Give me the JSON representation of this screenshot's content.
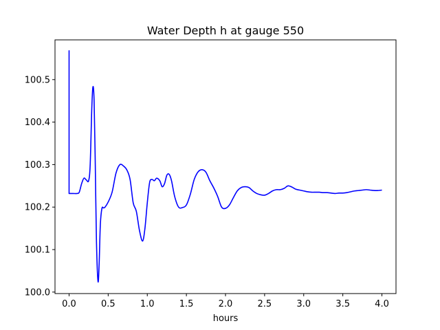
{
  "chart_data": {
    "type": "line",
    "title": "Water Depth h at gauge 550",
    "xlabel": "hours",
    "ylabel": "",
    "xlim": [
      -0.18,
      4.18
    ],
    "ylim": [
      99.9965,
      100.5935
    ],
    "grid": false,
    "x_ticks": [
      {
        "value": 0.0,
        "label": "0.0"
      },
      {
        "value": 0.5,
        "label": "0.5"
      },
      {
        "value": 1.0,
        "label": "1.0"
      },
      {
        "value": 1.5,
        "label": "1.5"
      },
      {
        "value": 2.0,
        "label": "2.0"
      },
      {
        "value": 2.5,
        "label": "2.5"
      },
      {
        "value": 3.0,
        "label": "3.0"
      },
      {
        "value": 3.5,
        "label": "3.5"
      },
      {
        "value": 4.0,
        "label": "4.0"
      }
    ],
    "y_ticks": [
      {
        "value": 100.0,
        "label": "100.0"
      },
      {
        "value": 100.1,
        "label": "100.1"
      },
      {
        "value": 100.2,
        "label": "100.2"
      },
      {
        "value": 100.3,
        "label": "100.3"
      },
      {
        "value": 100.4,
        "label": "100.4"
      },
      {
        "value": 100.5,
        "label": "100.5"
      }
    ],
    "series": [
      {
        "color": "#0000ff",
        "x": [
          0.0,
          0.0,
          0.0,
          0.05,
          0.1,
          0.13,
          0.16,
          0.19,
          0.22,
          0.25,
          0.27,
          0.29,
          0.305,
          0.32,
          0.335,
          0.35,
          0.37,
          0.385,
          0.4,
          0.42,
          0.44,
          0.46,
          0.5,
          0.55,
          0.6,
          0.65,
          0.7,
          0.74,
          0.78,
          0.82,
          0.86,
          0.9,
          0.94,
          0.97,
          1.0,
          1.03,
          1.06,
          1.09,
          1.12,
          1.16,
          1.19,
          1.22,
          1.25,
          1.28,
          1.31,
          1.35,
          1.4,
          1.45,
          1.5,
          1.55,
          1.6,
          1.65,
          1.7,
          1.75,
          1.8,
          1.85,
          1.9,
          1.95,
          2.0,
          2.05,
          2.1,
          2.15,
          2.2,
          2.25,
          2.3,
          2.35,
          2.4,
          2.45,
          2.5,
          2.55,
          2.6,
          2.65,
          2.7,
          2.75,
          2.8,
          2.85,
          2.9,
          2.95,
          3.0,
          3.05,
          3.1,
          3.15,
          3.2,
          3.25,
          3.3,
          3.35,
          3.4,
          3.45,
          3.5,
          3.55,
          3.6,
          3.65,
          3.7,
          3.75,
          3.8,
          3.85,
          3.9,
          3.95,
          4.0
        ],
        "y": [
          100.232,
          100.568,
          100.232,
          100.232,
          100.232,
          100.235,
          100.255,
          100.268,
          100.264,
          100.262,
          100.3,
          100.43,
          100.483,
          100.45,
          100.3,
          100.12,
          100.025,
          100.07,
          100.16,
          100.197,
          100.198,
          100.2,
          100.212,
          100.235,
          100.28,
          100.3,
          100.296,
          100.287,
          100.265,
          100.21,
          100.19,
          100.145,
          100.12,
          100.15,
          100.21,
          100.258,
          100.265,
          100.262,
          100.268,
          100.262,
          100.248,
          100.255,
          100.275,
          100.277,
          100.262,
          100.225,
          100.2,
          100.199,
          100.205,
          100.23,
          100.265,
          100.283,
          100.288,
          100.282,
          100.262,
          100.245,
          100.225,
          100.2,
          100.197,
          100.205,
          100.222,
          100.238,
          100.246,
          100.248,
          100.246,
          100.238,
          100.232,
          100.229,
          100.228,
          100.232,
          100.238,
          100.241,
          100.241,
          100.244,
          100.25,
          100.247,
          100.242,
          100.24,
          100.238,
          100.236,
          100.235,
          100.235,
          100.235,
          100.234,
          100.234,
          100.233,
          100.232,
          100.233,
          100.233,
          100.234,
          100.236,
          100.238,
          100.239,
          100.24,
          100.241,
          100.24,
          100.239,
          100.239,
          100.24
        ]
      }
    ]
  }
}
